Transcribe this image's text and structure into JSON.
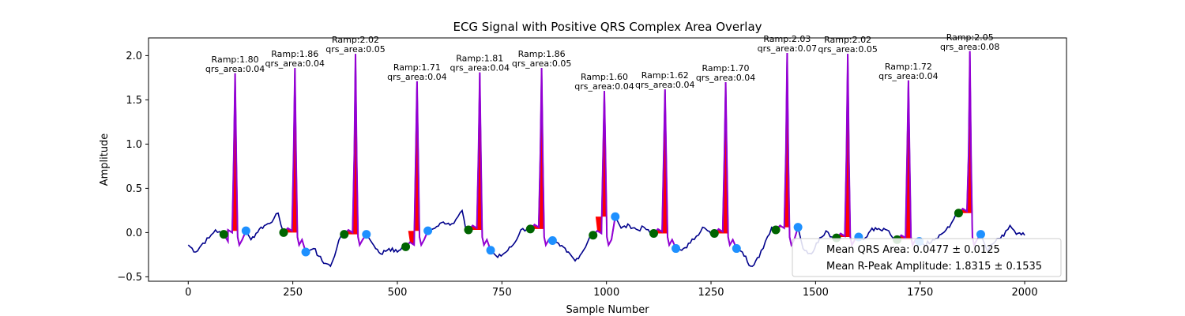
{
  "chart_data": {
    "type": "line",
    "title": "ECG Signal with Positive QRS Complex Area Overlay",
    "xlabel": "Sample Number",
    "ylabel": "Amplitude",
    "xlim": [
      -95,
      2100
    ],
    "ylim": [
      -0.55,
      2.2
    ],
    "xticks": [
      0,
      250,
      500,
      750,
      1000,
      1250,
      1500,
      1750,
      2000
    ],
    "yticks": [
      -0.5,
      0.0,
      0.5,
      1.0,
      1.5,
      2.0
    ],
    "xtick_labels": [
      "0",
      "250",
      "500",
      "750",
      "1000",
      "1250",
      "1500",
      "1750",
      "2000"
    ],
    "ytick_labels": [
      "−0.5",
      "0.0",
      "0.5",
      "1.0",
      "1.5",
      "2.0"
    ],
    "grid": false,
    "legend_position": "bottom-right",
    "colors": {
      "ecg": "#00008b",
      "qrs_segment": "#9400d3",
      "qrs_area": "#ff0000",
      "q_marker": "#006400",
      "s_marker": "#1e90ff"
    },
    "beats": [
      {
        "q_x": 85,
        "q_y": -0.02,
        "r_x": 112,
        "r_amp": 1.8,
        "s_x": 138,
        "s_y": 0.02,
        "ramp_text": "Ramp:1.80",
        "area_text": "qrs_area:0.04"
      },
      {
        "q_x": 228,
        "q_y": 0.0,
        "r_x": 255,
        "r_amp": 1.86,
        "s_x": 281,
        "s_y": -0.22,
        "ramp_text": "Ramp:1.86",
        "area_text": "qrs_area:0.04"
      },
      {
        "q_x": 373,
        "q_y": -0.02,
        "r_x": 400,
        "r_amp": 2.02,
        "s_x": 426,
        "s_y": -0.02,
        "ramp_text": "Ramp:2.02",
        "area_text": "qrs_area:0.05"
      },
      {
        "q_x": 520,
        "q_y": -0.16,
        "r_x": 547,
        "r_amp": 1.71,
        "s_x": 573,
        "s_y": 0.02,
        "ramp_text": "Ramp:1.71",
        "area_text": "qrs_area:0.04"
      },
      {
        "q_x": 670,
        "q_y": 0.03,
        "r_x": 697,
        "r_amp": 1.81,
        "s_x": 723,
        "s_y": -0.2,
        "ramp_text": "Ramp:1.81",
        "area_text": "qrs_area:0.04"
      },
      {
        "q_x": 818,
        "q_y": 0.04,
        "r_x": 845,
        "r_amp": 1.86,
        "s_x": 871,
        "s_y": -0.09,
        "ramp_text": "Ramp:1.86",
        "area_text": "qrs_area:0.05"
      },
      {
        "q_x": 968,
        "q_y": -0.03,
        "r_x": 995,
        "r_amp": 1.6,
        "s_x": 1021,
        "s_y": 0.18,
        "ramp_text": "Ramp:1.60",
        "area_text": "qrs_area:0.04"
      },
      {
        "q_x": 1113,
        "q_y": -0.01,
        "r_x": 1140,
        "r_amp": 1.62,
        "s_x": 1166,
        "s_y": -0.18,
        "ramp_text": "Ramp:1.62",
        "area_text": "qrs_area:0.04"
      },
      {
        "q_x": 1258,
        "q_y": -0.01,
        "r_x": 1285,
        "r_amp": 1.7,
        "s_x": 1311,
        "s_y": -0.18,
        "ramp_text": "Ramp:1.70",
        "area_text": "qrs_area:0.04"
      },
      {
        "q_x": 1405,
        "q_y": 0.03,
        "r_x": 1432,
        "r_amp": 2.03,
        "s_x": 1458,
        "s_y": 0.06,
        "ramp_text": "Ramp:2.03",
        "area_text": "qrs_area:0.07"
      },
      {
        "q_x": 1550,
        "q_y": -0.06,
        "r_x": 1577,
        "r_amp": 2.02,
        "s_x": 1603,
        "s_y": -0.05,
        "ramp_text": "Ramp:2.02",
        "area_text": "qrs_area:0.05"
      },
      {
        "q_x": 1695,
        "q_y": -0.08,
        "r_x": 1722,
        "r_amp": 1.72,
        "s_x": 1748,
        "s_y": -0.1,
        "ramp_text": "Ramp:1.72",
        "area_text": "qrs_area:0.04"
      },
      {
        "q_x": 1842,
        "q_y": 0.22,
        "r_x": 1869,
        "r_amp": 2.05,
        "s_x": 1895,
        "s_y": -0.02,
        "ramp_text": "Ramp:2.05",
        "area_text": "qrs_area:0.08"
      }
    ],
    "baseline": [
      [
        0,
        -0.14
      ],
      [
        18,
        -0.22
      ],
      [
        35,
        -0.12
      ],
      [
        50,
        -0.06
      ],
      [
        65,
        0.03
      ],
      [
        80,
        -0.02
      ],
      [
        95,
        -0.1
      ],
      [
        150,
        -0.08
      ],
      [
        170,
        0.04
      ],
      [
        190,
        0.1
      ],
      [
        205,
        0.16
      ],
      [
        215,
        0.22
      ],
      [
        222,
        0.08
      ],
      [
        300,
        -0.18
      ],
      [
        320,
        -0.32
      ],
      [
        340,
        -0.38
      ],
      [
        355,
        -0.18
      ],
      [
        365,
        -0.04
      ],
      [
        440,
        -0.12
      ],
      [
        460,
        -0.24
      ],
      [
        480,
        -0.18
      ],
      [
        500,
        -0.22
      ],
      [
        512,
        -0.16
      ],
      [
        590,
        0.05
      ],
      [
        610,
        0.12
      ],
      [
        630,
        0.1
      ],
      [
        645,
        0.18
      ],
      [
        655,
        0.25
      ],
      [
        663,
        0.05
      ],
      [
        740,
        -0.28
      ],
      [
        760,
        -0.22
      ],
      [
        780,
        -0.12
      ],
      [
        795,
        0.03
      ],
      [
        810,
        0.04
      ],
      [
        885,
        -0.12
      ],
      [
        905,
        -0.22
      ],
      [
        925,
        -0.32
      ],
      [
        945,
        -0.2
      ],
      [
        960,
        -0.05
      ],
      [
        1035,
        0.05
      ],
      [
        1055,
        0.08
      ],
      [
        1075,
        0.03
      ],
      [
        1090,
        0.06
      ],
      [
        1105,
        -0.01
      ],
      [
        1180,
        -0.2
      ],
      [
        1200,
        -0.12
      ],
      [
        1215,
        -0.04
      ],
      [
        1230,
        0.06
      ],
      [
        1250,
        -0.02
      ],
      [
        1325,
        -0.22
      ],
      [
        1345,
        -0.38
      ],
      [
        1365,
        -0.28
      ],
      [
        1380,
        -0.1
      ],
      [
        1395,
        0.06
      ],
      [
        1470,
        -0.18
      ],
      [
        1490,
        -0.24
      ],
      [
        1510,
        -0.06
      ],
      [
        1525,
        0.02
      ],
      [
        1540,
        -0.05
      ],
      [
        1615,
        -0.08
      ],
      [
        1635,
        0.05
      ],
      [
        1655,
        0.03
      ],
      [
        1675,
        0.02
      ],
      [
        1688,
        -0.08
      ],
      [
        1760,
        -0.14
      ],
      [
        1780,
        -0.08
      ],
      [
        1800,
        -0.02
      ],
      [
        1820,
        0.06
      ],
      [
        1835,
        0.2
      ],
      [
        1910,
        -0.2
      ],
      [
        1930,
        -0.1
      ],
      [
        1950,
        -0.04
      ],
      [
        1965,
        0.08
      ],
      [
        1980,
        -0.02
      ],
      [
        2000,
        -0.03
      ]
    ],
    "legend": [
      {
        "label": "Mean QRS Area: 0.0477 ± 0.0125"
      },
      {
        "label": "Mean R-Peak Amplitude: 1.8315 ± 0.1535"
      }
    ]
  }
}
